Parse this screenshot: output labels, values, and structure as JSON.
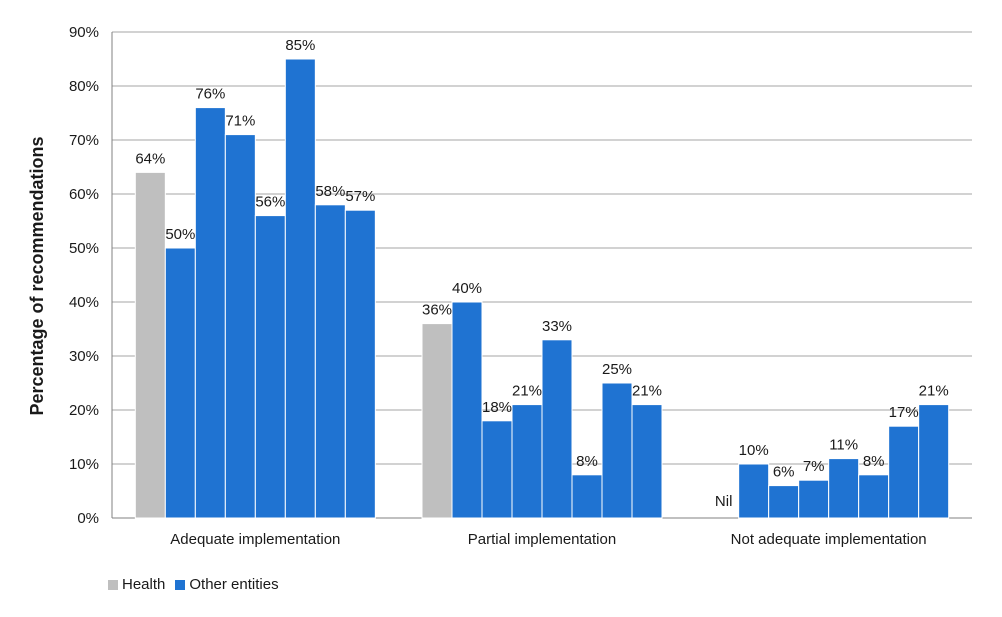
{
  "chart_data": {
    "type": "bar",
    "ylabel": "Percentage of recommendations",
    "ylim": [
      0,
      90
    ],
    "yticks": [
      "0%",
      "10%",
      "20%",
      "30%",
      "40%",
      "50%",
      "60%",
      "70%",
      "80%",
      "90%"
    ],
    "grid": true,
    "legend_position": "bottom-left",
    "legend": [
      {
        "name": "Health",
        "color": "#bfbfbf"
      },
      {
        "name": "Other entities",
        "color": "#1f73d2"
      }
    ],
    "groups": [
      {
        "category": "Adequate implementation",
        "bars": [
          {
            "series": "Health",
            "value": 64,
            "label": "64%"
          },
          {
            "series": "Other entities",
            "value": 50,
            "label": "50%"
          },
          {
            "series": "Other entities",
            "value": 76,
            "label": "76%"
          },
          {
            "series": "Other entities",
            "value": 71,
            "label": "71%"
          },
          {
            "series": "Other entities",
            "value": 56,
            "label": "56%"
          },
          {
            "series": "Other entities",
            "value": 85,
            "label": "85%"
          },
          {
            "series": "Other entities",
            "value": 58,
            "label": "58%"
          },
          {
            "series": "Other entities",
            "value": 57,
            "label": "57%"
          }
        ]
      },
      {
        "category": "Partial implementation",
        "bars": [
          {
            "series": "Health",
            "value": 36,
            "label": "36%"
          },
          {
            "series": "Other entities",
            "value": 40,
            "label": "40%"
          },
          {
            "series": "Other entities",
            "value": 18,
            "label": "18%"
          },
          {
            "series": "Other entities",
            "value": 21,
            "label": "21%"
          },
          {
            "series": "Other entities",
            "value": 33,
            "label": "33%"
          },
          {
            "series": "Other entities",
            "value": 8,
            "label": "8%"
          },
          {
            "series": "Other entities",
            "value": 25,
            "label": "25%"
          },
          {
            "series": "Other entities",
            "value": 21,
            "label": "21%"
          }
        ]
      },
      {
        "category": "Not adequate implementation",
        "bars": [
          {
            "series": "Health",
            "value": 0,
            "label": "Nil"
          },
          {
            "series": "Other entities",
            "value": 10,
            "label": "10%"
          },
          {
            "series": "Other entities",
            "value": 6,
            "label": "6%"
          },
          {
            "series": "Other entities",
            "value": 7,
            "label": "7%"
          },
          {
            "series": "Other entities",
            "value": 11,
            "label": "11%"
          },
          {
            "series": "Other entities",
            "value": 8,
            "label": "8%"
          },
          {
            "series": "Other entities",
            "value": 17,
            "label": "17%"
          },
          {
            "series": "Other entities",
            "value": 21,
            "label": "21%"
          }
        ]
      }
    ]
  }
}
